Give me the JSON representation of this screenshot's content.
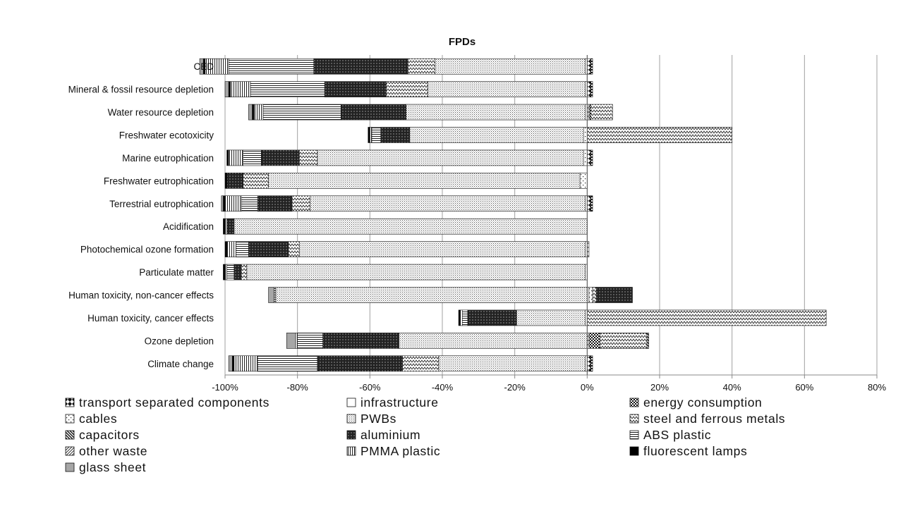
{
  "chart_data": {
    "type": "bar",
    "orientation": "horizontal",
    "stacked": true,
    "title": "FPDs",
    "xlabel": "",
    "ylabel": "",
    "xlim": [
      -100,
      80
    ],
    "x_ticks": [
      -100,
      -80,
      -60,
      -40,
      -20,
      0,
      20,
      40,
      60,
      80
    ],
    "x_tick_labels": [
      "-100%",
      "-80%",
      "-60%",
      "-40%",
      "-20%",
      "0%",
      "20%",
      "40%",
      "60%",
      "80%"
    ],
    "value_unit": "%",
    "grid": "vertical",
    "legend_position": "bottom",
    "categories": [
      "CED",
      "Mineral & fossil resource depletion",
      "Water resource depletion",
      "Freshwater ecotoxicity",
      "Marine eutrophication",
      "Freshwater eutrophication",
      "Terrestrial eutrophication",
      "Acidification",
      "Photochemical ozone formation",
      "Particulate matter",
      "Human toxicity, non-cancer effects",
      "Human toxicity, cancer effects",
      "Ozone depletion",
      "Climate change"
    ],
    "series": [
      {
        "name": "transport separated components",
        "pattern": "diamond",
        "values": [
          1,
          1,
          0.5,
          0,
          1,
          0,
          1,
          0,
          0.5,
          0,
          0,
          0,
          0.5,
          1
        ]
      },
      {
        "name": "infrastructure",
        "pattern": "white",
        "values": [
          0,
          0,
          0,
          0,
          0,
          0,
          0,
          0,
          0,
          0,
          0.5,
          0,
          0,
          0
        ]
      },
      {
        "name": "energy consumption",
        "pattern": "checker",
        "values": [
          0.5,
          0.5,
          0.5,
          0,
          0.5,
          0,
          0.5,
          0,
          0,
          0,
          0,
          0,
          3,
          0.5
        ]
      },
      {
        "name": "cables",
        "pattern": "dots",
        "values": [
          -0.5,
          -0.5,
          -0.5,
          -1,
          -1,
          -2,
          -0.5,
          0,
          -0.5,
          -0.5,
          1,
          -0.5,
          0,
          -0.5
        ]
      },
      {
        "name": "PWBs",
        "pattern": "fine-dots",
        "values": [
          -41.5,
          -43.5,
          -49.5,
          -48,
          -73.5,
          -86,
          -76,
          -97.5,
          -79,
          -93.5,
          -86,
          -19,
          -52,
          -40.5
        ]
      },
      {
        "name": "steel and ferrous metals",
        "pattern": "zigzag",
        "values": [
          -7.5,
          -11.5,
          6,
          40,
          -5,
          -7,
          -5,
          0,
          -3,
          -1.5,
          1,
          66,
          13,
          -10
        ]
      },
      {
        "name": "capacitors",
        "pattern": "back-diag",
        "values": [
          0,
          0,
          0,
          0,
          0,
          0,
          0,
          0,
          0,
          0,
          0,
          0,
          0.5,
          0
        ]
      },
      {
        "name": "aluminium",
        "pattern": "dark-diamond",
        "values": [
          -26,
          -17,
          -18,
          -8,
          -10.5,
          -4.5,
          -9.5,
          -2,
          -11,
          -2,
          10,
          -13.5,
          -21,
          -23.5
        ]
      },
      {
        "name": "ABS plastic",
        "pattern": "hlines",
        "values": [
          -23.5,
          -20.5,
          -21.5,
          -2.5,
          -5,
          0,
          -4.5,
          0,
          -3.5,
          -2,
          -0.5,
          -1.5,
          -7,
          -16.5
        ]
      },
      {
        "name": "other waste",
        "pattern": "diag",
        "values": [
          0,
          0,
          0,
          0,
          0,
          0,
          0,
          0,
          0,
          0,
          0,
          0,
          0,
          0
        ]
      },
      {
        "name": "PMMA plastic",
        "pattern": "vlines",
        "values": [
          -6.5,
          -5.5,
          -2.5,
          -0.5,
          -4,
          0,
          -4.5,
          -0.5,
          -2.5,
          -0.5,
          0,
          -0.5,
          -0.5,
          -6.5
        ]
      },
      {
        "name": "fluorescent lamps",
        "pattern": "black",
        "values": [
          -0.5,
          -0.5,
          -0.5,
          -0.5,
          -0.5,
          -0.5,
          -0.5,
          -0.5,
          -0.5,
          -0.5,
          0,
          -0.5,
          0,
          -0.5
        ]
      },
      {
        "name": "glass sheet",
        "pattern": "gray",
        "values": [
          -1,
          -1,
          -1,
          0,
          0,
          0,
          -0.5,
          0,
          0,
          0,
          -1.5,
          0,
          -2.5,
          -1
        ]
      }
    ]
  }
}
